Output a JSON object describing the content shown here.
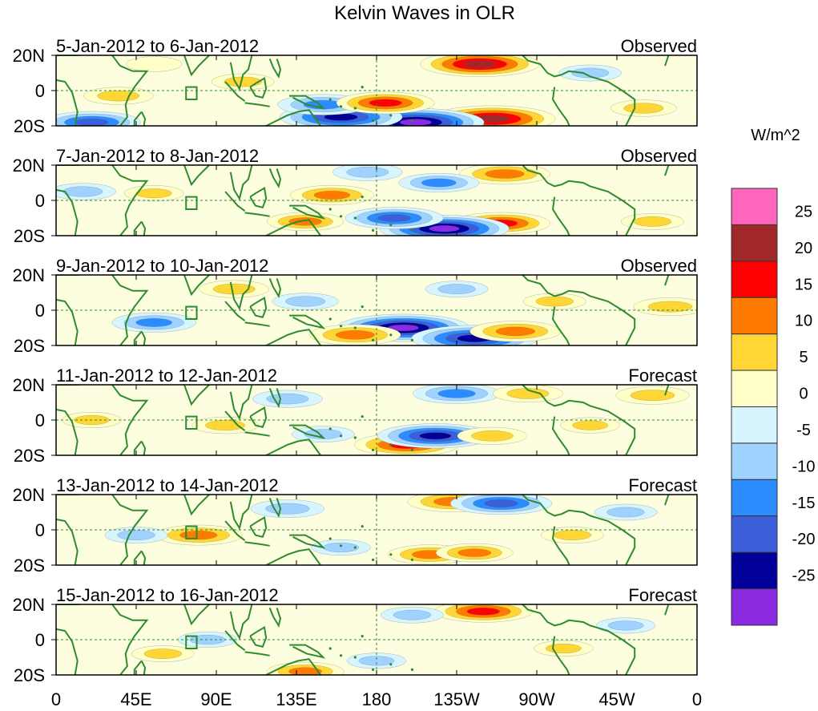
{
  "chart_data": {
    "type": "heatmap",
    "title": "Kelvin Waves in OLR",
    "units_label": "W/m^2",
    "colorbar": {
      "levels": [
        -25,
        -20,
        -15,
        -10,
        -5,
        0,
        5,
        10,
        15,
        20,
        25
      ],
      "tick_labels": [
        "25",
        "20",
        "15",
        "10",
        "5",
        "0",
        "-5",
        "-10",
        "-15",
        "-20",
        "-25"
      ],
      "colors_top_to_bottom": [
        "#ff66bb",
        "#a02828",
        "#ff0000",
        "#ff7b00",
        "#ffd633",
        "#ffffc8",
        "#d6f5ff",
        "#9fd2ff",
        "#2a8cff",
        "#3a5fd9",
        "#000099",
        "#8a2be2"
      ]
    },
    "lon_ticks": [
      "0",
      "45E",
      "90E",
      "135E",
      "180",
      "135W",
      "90W",
      "45W",
      "0"
    ],
    "lat_ticks": [
      "20N",
      "0",
      "20S"
    ],
    "lat_range": [
      -20,
      20
    ],
    "lon_range": [
      0,
      360
    ],
    "panels": [
      {
        "date_label": "5-Jan-2012 to 6-Jan-2012",
        "status": "Observed",
        "anomalies": [
          {
            "lon": 238,
            "lat": 15,
            "value": 22
          },
          {
            "lon": 245,
            "lat": -16,
            "value": 24
          },
          {
            "lon": 202,
            "lat": -18,
            "value": -27
          },
          {
            "lon": 160,
            "lat": -15,
            "value": -23
          },
          {
            "lon": 150,
            "lat": -8,
            "value": -14
          },
          {
            "lon": 185,
            "lat": -7,
            "value": 16
          },
          {
            "lon": 20,
            "lat": -18,
            "value": -16
          },
          {
            "lon": 35,
            "lat": -3,
            "value": 8
          },
          {
            "lon": 55,
            "lat": 15,
            "value": 4
          },
          {
            "lon": 105,
            "lat": 5,
            "value": 6
          },
          {
            "lon": 300,
            "lat": 10,
            "value": -6
          },
          {
            "lon": 330,
            "lat": -10,
            "value": 7
          }
        ]
      },
      {
        "date_label": "7-Jan-2012 to 8-Jan-2012",
        "status": "Observed",
        "anomalies": [
          {
            "lon": 252,
            "lat": 15,
            "value": 14
          },
          {
            "lon": 250,
            "lat": -13,
            "value": 16
          },
          {
            "lon": 218,
            "lat": -16,
            "value": -25
          },
          {
            "lon": 190,
            "lat": -10,
            "value": -16
          },
          {
            "lon": 155,
            "lat": 3,
            "value": 12
          },
          {
            "lon": 140,
            "lat": -12,
            "value": 10
          },
          {
            "lon": 215,
            "lat": 10,
            "value": -11
          },
          {
            "lon": 15,
            "lat": 5,
            "value": -7
          },
          {
            "lon": 55,
            "lat": 4,
            "value": 5
          },
          {
            "lon": 335,
            "lat": -12,
            "value": 6
          },
          {
            "lon": 175,
            "lat": 16,
            "value": -8
          }
        ]
      },
      {
        "date_label": "9-Jan-2012 to 10-Jan-2012",
        "status": "Observed",
        "anomalies": [
          {
            "lon": 195,
            "lat": -10,
            "value": -26
          },
          {
            "lon": 235,
            "lat": -16,
            "value": -24
          },
          {
            "lon": 168,
            "lat": -14,
            "value": 14
          },
          {
            "lon": 258,
            "lat": -12,
            "value": 14
          },
          {
            "lon": 55,
            "lat": -7,
            "value": -12
          },
          {
            "lon": 100,
            "lat": 12,
            "value": 8
          },
          {
            "lon": 225,
            "lat": 12,
            "value": -6
          },
          {
            "lon": 345,
            "lat": 2,
            "value": 9
          },
          {
            "lon": 280,
            "lat": 5,
            "value": 6
          },
          {
            "lon": 140,
            "lat": 5,
            "value": -7
          }
        ]
      },
      {
        "date_label": "11-Jan-2012 to 12-Jan-2012",
        "status": "Forecast",
        "anomalies": [
          {
            "lon": 197,
            "lat": -14,
            "value": 18
          },
          {
            "lon": 213,
            "lat": -9,
            "value": -21
          },
          {
            "lon": 225,
            "lat": 15,
            "value": -13
          },
          {
            "lon": 265,
            "lat": 15,
            "value": 8
          },
          {
            "lon": 245,
            "lat": -9,
            "value": 8
          },
          {
            "lon": 130,
            "lat": 12,
            "value": -8
          },
          {
            "lon": 95,
            "lat": -3,
            "value": 7
          },
          {
            "lon": 20,
            "lat": 0,
            "value": 5
          },
          {
            "lon": 335,
            "lat": 14,
            "value": 9
          },
          {
            "lon": 300,
            "lat": -3,
            "value": 5
          },
          {
            "lon": 150,
            "lat": -8,
            "value": -6
          }
        ]
      },
      {
        "date_label": "13-Jan-2012 to 14-Jan-2012",
        "status": "Forecast",
        "anomalies": [
          {
            "lon": 223,
            "lat": 16,
            "value": 14
          },
          {
            "lon": 250,
            "lat": 15,
            "value": -17
          },
          {
            "lon": 210,
            "lat": -14,
            "value": 12
          },
          {
            "lon": 235,
            "lat": -13,
            "value": 10
          },
          {
            "lon": 80,
            "lat": -3,
            "value": 13
          },
          {
            "lon": 130,
            "lat": 12,
            "value": -9
          },
          {
            "lon": 45,
            "lat": -3,
            "value": -6
          },
          {
            "lon": 290,
            "lat": -3,
            "value": 6
          },
          {
            "lon": 160,
            "lat": -10,
            "value": -5
          },
          {
            "lon": 320,
            "lat": 10,
            "value": -6
          }
        ]
      },
      {
        "date_label": "15-Jan-2012 to 16-Jan-2012",
        "status": "Forecast",
        "anomalies": [
          {
            "lon": 240,
            "lat": 16,
            "value": 16
          },
          {
            "lon": 200,
            "lat": 14,
            "value": -6
          },
          {
            "lon": 140,
            "lat": -18,
            "value": 10
          },
          {
            "lon": 85,
            "lat": 0,
            "value": -5
          },
          {
            "lon": 60,
            "lat": -8,
            "value": 6
          },
          {
            "lon": 285,
            "lat": -5,
            "value": 5
          },
          {
            "lon": 320,
            "lat": 8,
            "value": -5
          },
          {
            "lon": 180,
            "lat": -12,
            "value": -5
          }
        ]
      }
    ]
  }
}
